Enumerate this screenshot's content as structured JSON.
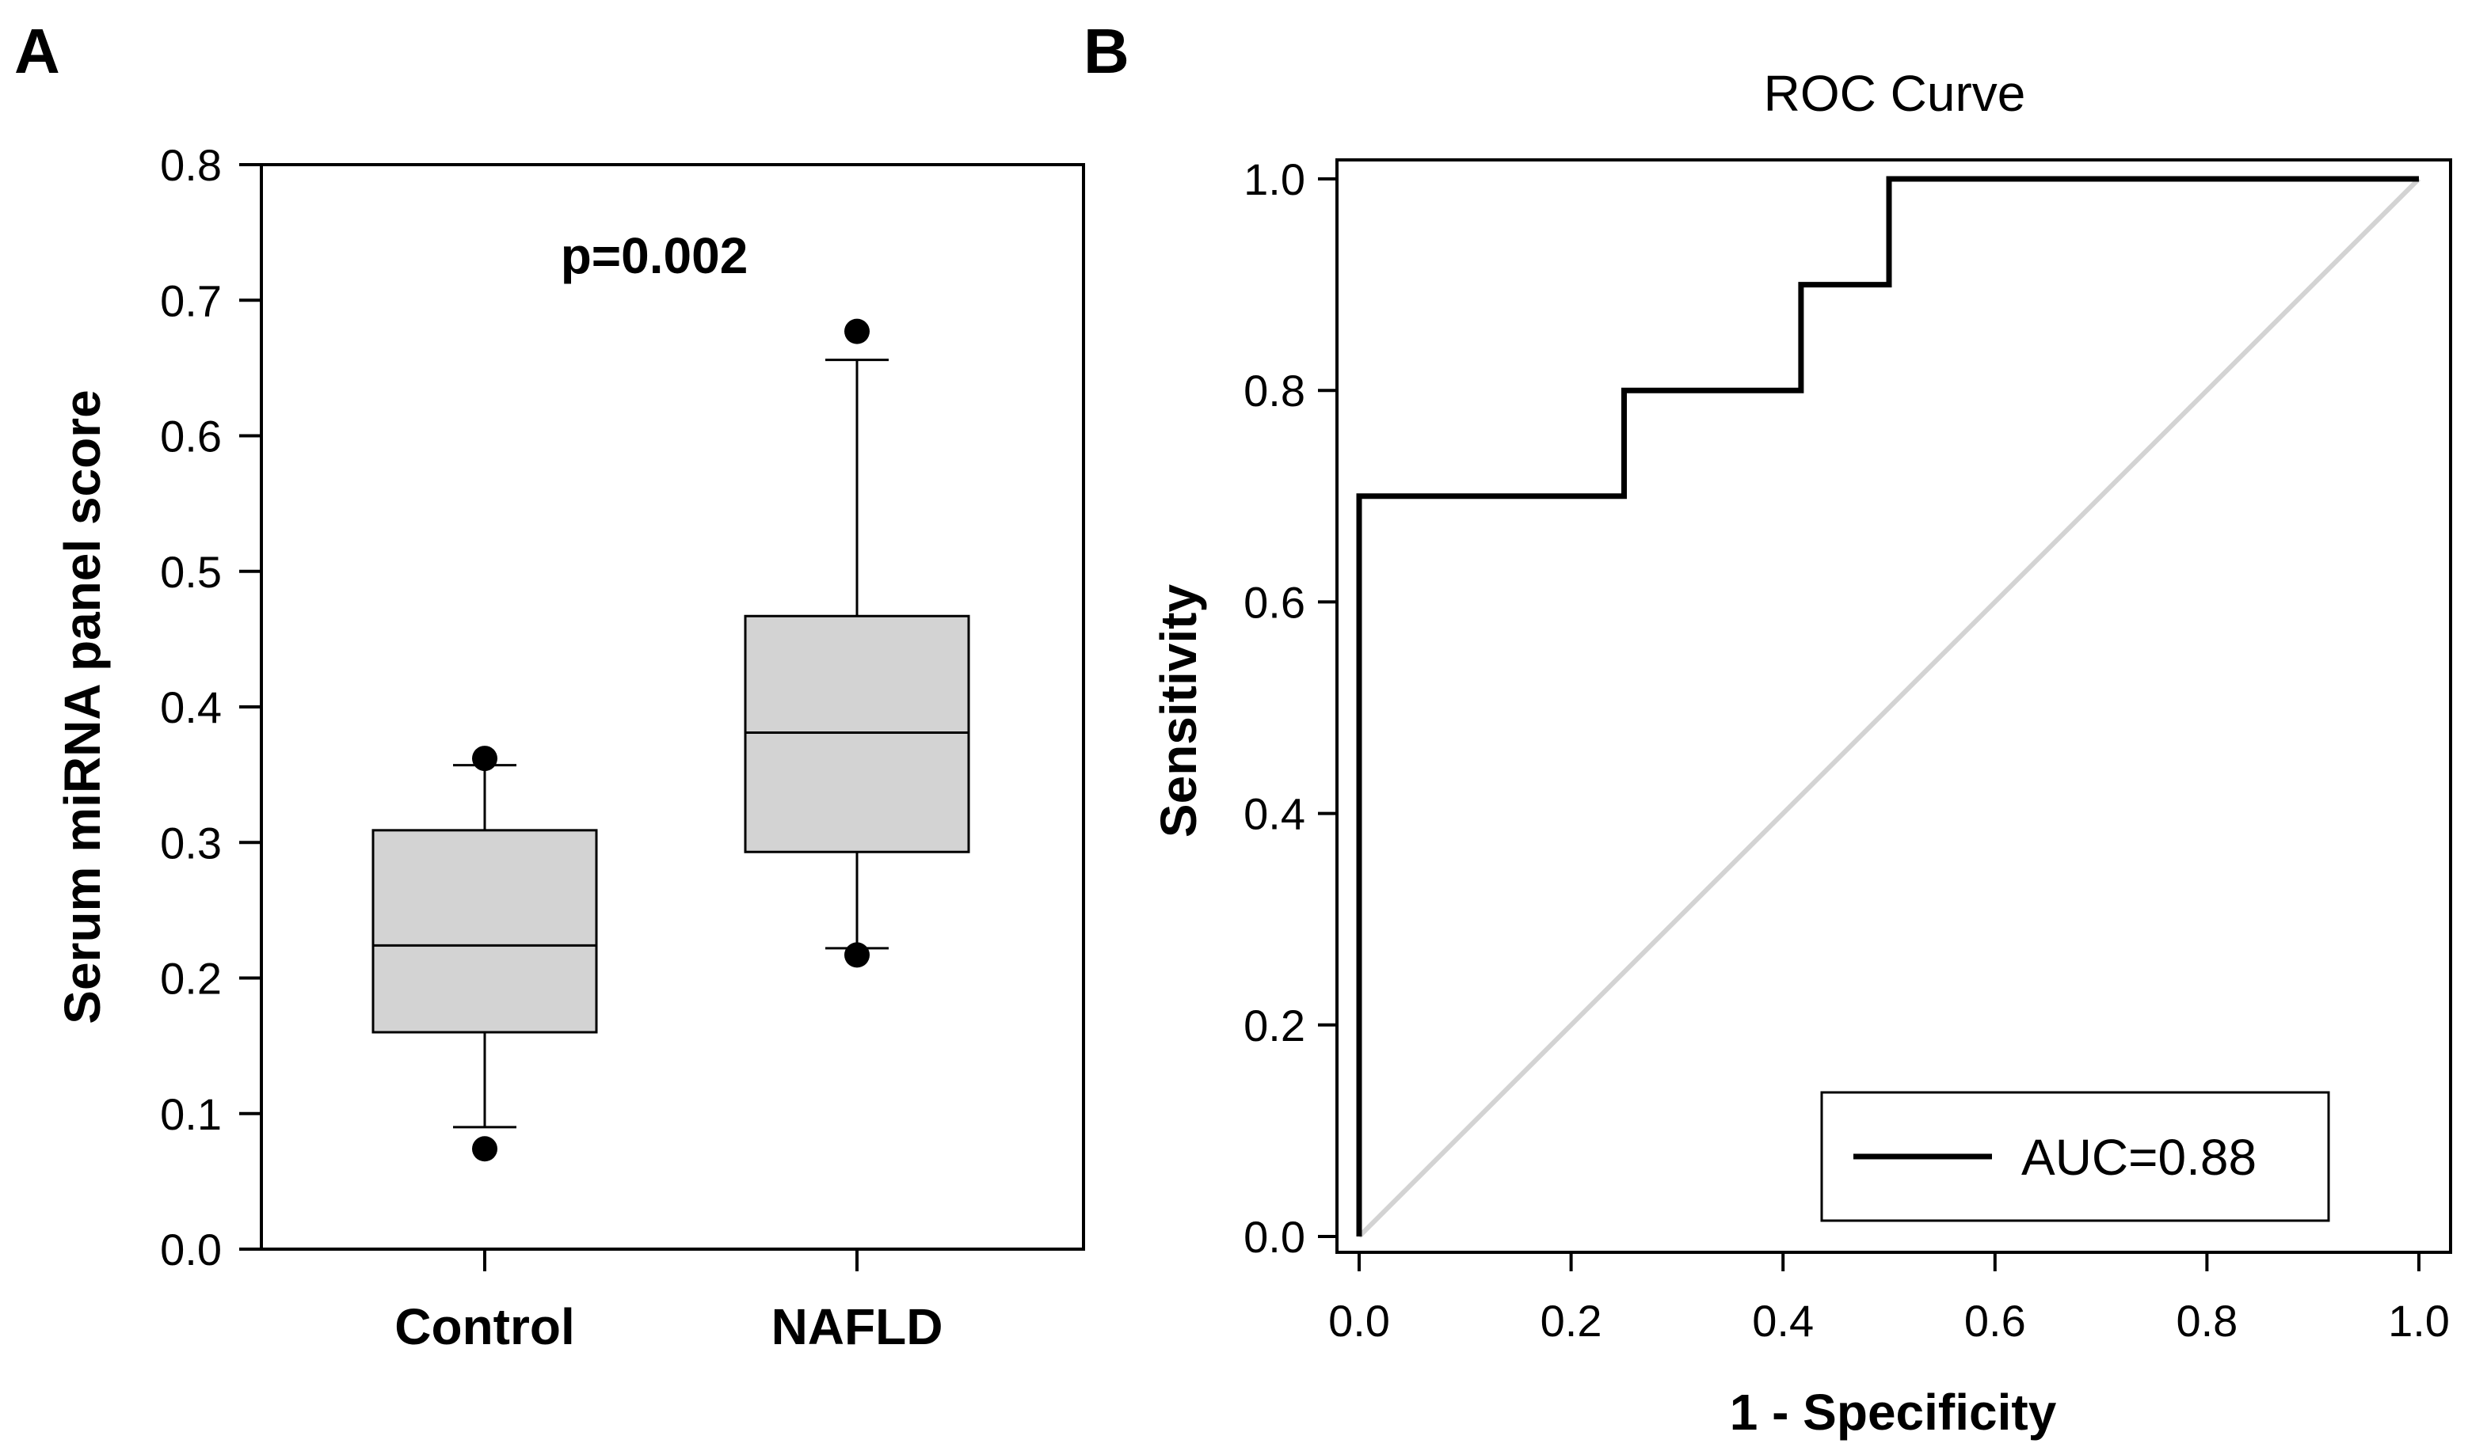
{
  "chart_data": [
    {
      "panel": "A",
      "type": "box",
      "ylabel": "Serum miRNA panel score",
      "ylim": [
        0,
        0.8
      ],
      "yticks": [
        "0.0",
        "0.1",
        "0.2",
        "0.3",
        "0.4",
        "0.5",
        "0.6",
        "0.7",
        "0.8"
      ],
      "annotation": "p=0.002",
      "categories": [
        "Control",
        "NAFLD"
      ],
      "boxes": [
        {
          "category": "Control",
          "whisker_low": 0.09,
          "q1": 0.16,
          "median": 0.224,
          "q3": 0.309,
          "whisker_high": 0.357,
          "outliers": [
            0.074,
            0.362
          ]
        },
        {
          "category": "NAFLD",
          "whisker_low": 0.222,
          "q1": 0.293,
          "median": 0.381,
          "q3": 0.467,
          "whisker_high": 0.656,
          "outliers": [
            0.217,
            0.677
          ]
        }
      ],
      "grid": false,
      "colors": {
        "box_fill": "#d3d3d3",
        "stroke": "#000000"
      }
    },
    {
      "panel": "B",
      "type": "line",
      "title": "ROC Curve",
      "xlabel": "1 - Specificity",
      "ylabel": "Sensitivity",
      "xlim": [
        0,
        1
      ],
      "ylim": [
        0,
        1
      ],
      "xticks": [
        "0.0",
        "0.2",
        "0.4",
        "0.6",
        "0.8",
        "1.0"
      ],
      "yticks": [
        "0.0",
        "0.2",
        "0.4",
        "0.6",
        "0.8",
        "1.0"
      ],
      "series": [
        {
          "name": "AUC=0.88",
          "step": true,
          "points": [
            [
              0,
              0
            ],
            [
              0,
              0.7
            ],
            [
              0.25,
              0.7
            ],
            [
              0.25,
              0.8
            ],
            [
              0.417,
              0.8
            ],
            [
              0.417,
              0.9
            ],
            [
              0.5,
              0.9
            ],
            [
              0.5,
              1.0
            ],
            [
              1.0,
              1.0
            ]
          ],
          "color": "#000000"
        },
        {
          "name": "",
          "points": [
            [
              0,
              0
            ],
            [
              1,
              1
            ]
          ],
          "color": "#d3d3d3"
        }
      ],
      "legend": {
        "position": "bottom-right",
        "entries": [
          "AUC=0.88"
        ]
      },
      "grid": false
    }
  ]
}
